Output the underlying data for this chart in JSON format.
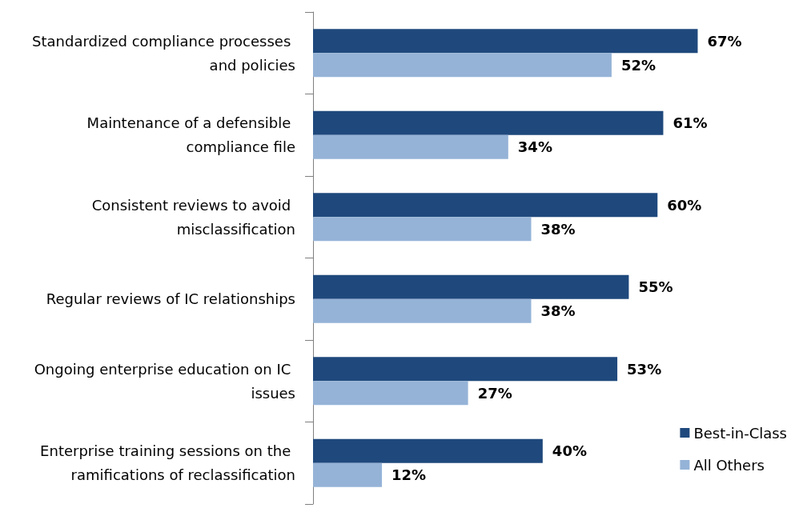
{
  "chart_data": {
    "type": "bar",
    "orientation": "horizontal",
    "categories": [
      "Standardized compliance processes and policies",
      "Maintenance of a defensible compliance file",
      "Consistent reviews to avoid misclassification",
      "Regular reviews of IC relationships",
      "Ongoing enterprise education on IC issues",
      "Enterprise training sessions on the ramifications of reclassification"
    ],
    "series": [
      {
        "name": "Best-in-Class",
        "color": "#1f497d",
        "values": [
          67,
          61,
          60,
          55,
          53,
          40
        ],
        "value_labels": [
          "67%",
          "61%",
          "60%",
          "55%",
          "53%",
          "40%"
        ]
      },
      {
        "name": "All Others",
        "color": "#95b3d7",
        "values": [
          52,
          34,
          38,
          38,
          27,
          12
        ],
        "value_labels": [
          "52%",
          "34%",
          "38%",
          "38%",
          "27%",
          "12%"
        ]
      }
    ],
    "tick_labels": "y",
    "legend": "bottom right",
    "grid": false
  }
}
